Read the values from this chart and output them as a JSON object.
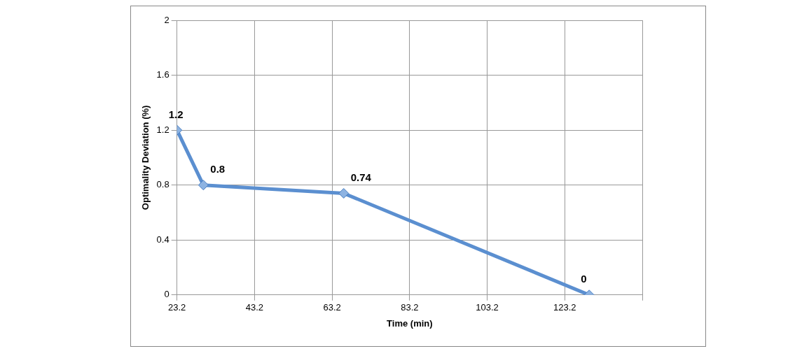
{
  "chart_data": {
    "type": "line",
    "xlabel": "Time (min)",
    "ylabel": "Optimality Deviation (%)",
    "x": [
      23.2,
      30,
      66.2,
      129.5
    ],
    "series": [
      {
        "color": "#5b8fd0",
        "values": [
          1.2,
          0.8,
          0.74,
          0
        ]
      }
    ],
    "xlim": [
      23.2,
      143.2
    ],
    "xticks": [
      23.2,
      43.2,
      63.2,
      83.2,
      103.2,
      123.2,
      {
        "value": 143.2,
        "label": null
      }
    ],
    "ylim": [
      0,
      2
    ],
    "yticks": [
      0,
      0.4,
      0.8,
      1.2,
      1.6,
      2
    ],
    "grid": true,
    "legend": false,
    "marker": "diamond",
    "line_style": "solid",
    "data_labels": true
  }
}
